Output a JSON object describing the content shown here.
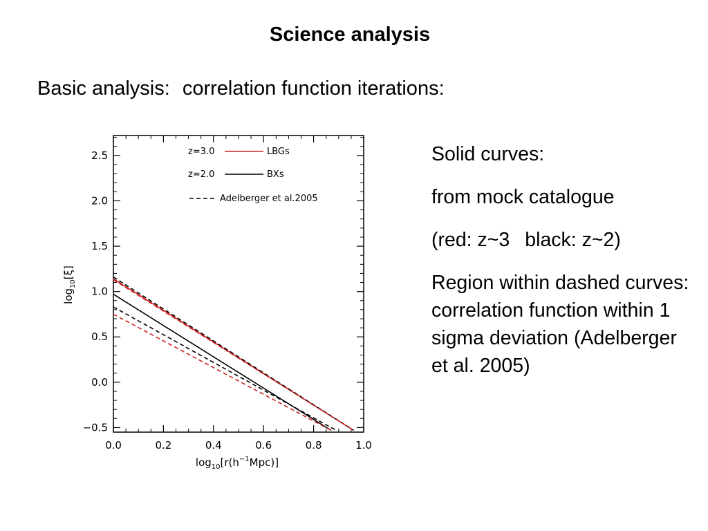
{
  "slide": {
    "title": "Science analysis",
    "subtitle_part1": "Basic analysis:",
    "subtitle_part2": "correlation function iterations:"
  },
  "notes": {
    "line1": "Solid curves:",
    "line2": "from mock catalogue",
    "line3a": "(red: z~3",
    "line3b": "black: z~2)",
    "line4": "Region within dashed curves: correlation function within 1 sigma deviation (Adelberger et al. 2005)"
  },
  "colors": {
    "red": "#cc2222",
    "black": "#000000"
  },
  "chart_data": {
    "type": "line",
    "xlabel": "log10[r(h^-1Mpc)]",
    "ylabel": "log10[ξ]",
    "xlim": [
      0.0,
      1.0
    ],
    "ylim": [
      -0.55,
      2.72
    ],
    "xticks": [
      "0.0",
      "0.2",
      "0.4",
      "0.6",
      "0.8",
      "1.0"
    ],
    "yticks": [
      "−0.5",
      "0.0",
      "0.5",
      "1.0",
      "1.5",
      "2.0",
      "2.5"
    ],
    "ytick_values": [
      -0.5,
      0.0,
      0.5,
      1.0,
      1.5,
      2.0,
      2.5
    ],
    "xtick_values": [
      0.0,
      0.2,
      0.4,
      0.6,
      0.8,
      1.0
    ],
    "legend_position": "top-left",
    "legend": [
      {
        "label_left": "z=3.0",
        "label_right": "LBGs",
        "color": "#cc2222",
        "style": "solid"
      },
      {
        "label_left": "z=2.0",
        "label_right": "BXs",
        "color": "#000000",
        "style": "solid"
      },
      {
        "label_left": "",
        "label_right": "Adelberger et al.2005",
        "color": "#000000",
        "style": "dashed"
      }
    ],
    "series": [
      {
        "color": "#cc2222",
        "style": "solid",
        "x": [
          0.0,
          0.96
        ],
        "y": [
          1.14,
          -0.53
        ]
      },
      {
        "color": "#000000",
        "style": "solid",
        "x": [
          0.0,
          0.87
        ],
        "y": [
          0.97,
          -0.53
        ]
      },
      {
        "color": "#000000",
        "style": "dashed",
        "x": [
          0.0,
          0.96
        ],
        "y": [
          1.16,
          -0.53
        ]
      },
      {
        "color": "#cc2222",
        "style": "dashed",
        "x": [
          0.0,
          0.96
        ],
        "y": [
          1.13,
          -0.53
        ]
      },
      {
        "color": "#000000",
        "style": "dashed",
        "x": [
          0.0,
          0.89
        ],
        "y": [
          0.83,
          -0.53
        ]
      },
      {
        "color": "#cc2222",
        "style": "dashed",
        "x": [
          0.0,
          0.87
        ],
        "y": [
          0.75,
          -0.53
        ]
      }
    ]
  }
}
